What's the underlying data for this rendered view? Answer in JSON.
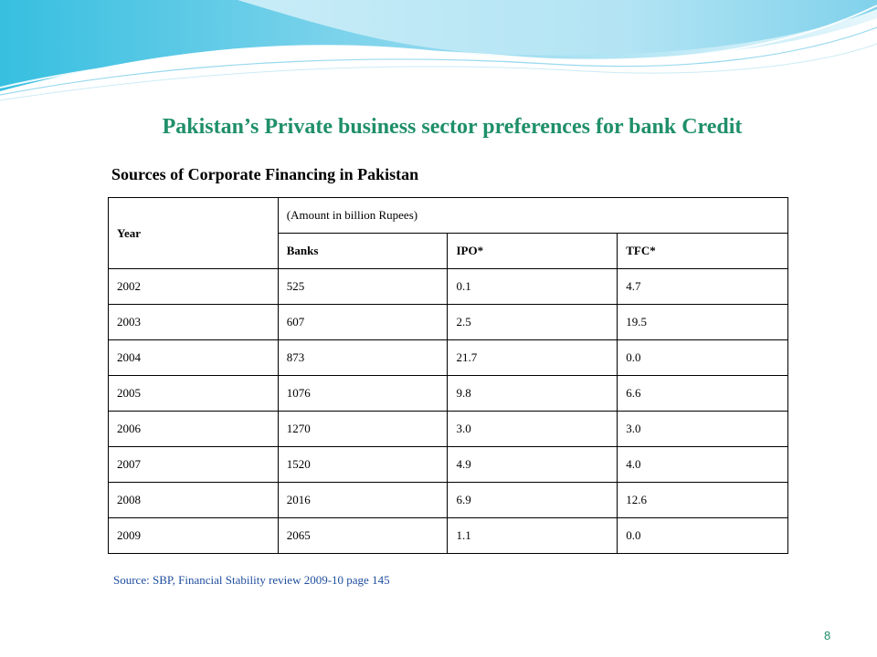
{
  "slide": {
    "title": "Pakistan’s Private business sector preferences for bank Credit",
    "subtitle": "Sources of Corporate Financing in Pakistan",
    "source": "Source: SBP, Financial Stability review 2009-10 page 145",
    "page_number": "8"
  },
  "table": {
    "year_header": "Year",
    "amount_header": "(Amount in billion Rupees)",
    "columns": [
      "Banks",
      "IPO*",
      "TFC*"
    ],
    "rows": [
      [
        "2002",
        "525",
        "0.1",
        "4.7"
      ],
      [
        "2003",
        "607",
        "2.5",
        "19.5"
      ],
      [
        "2004",
        "873",
        "21.7",
        "0.0"
      ],
      [
        "2005",
        "1076",
        "9.8",
        "6.6"
      ],
      [
        "2006",
        "1270",
        "3.0",
        "3.0"
      ],
      [
        "2007",
        "1520",
        "4.9",
        "4.0"
      ],
      [
        "2008",
        "2016",
        "6.9",
        "12.6"
      ],
      [
        "2009",
        "2065",
        "1.1",
        "0.0"
      ]
    ]
  },
  "colors": {
    "title": "#1f8f6a",
    "source": "#1f4e9e",
    "wave_light": "#bfe6f3",
    "wave_mid": "#7fd0ea",
    "wave_dark": "#2fb5d8"
  }
}
